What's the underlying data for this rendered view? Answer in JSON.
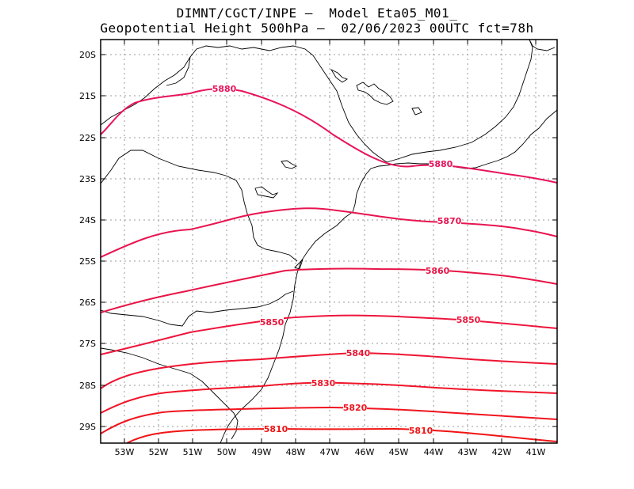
{
  "title_line1": "DIMNT/CGCT/INPE –  Model Eta05_M01_",
  "title_line2": "Geopotential Height 500hPa –  02/06/2023 00UTC fct=78h",
  "x_ticks": [
    "53W",
    "52W",
    "51W",
    "50W",
    "49W",
    "48W",
    "47W",
    "46W",
    "45W",
    "44W",
    "43W",
    "42W",
    "41W"
  ],
  "y_ticks": [
    "20S",
    "21S",
    "22S",
    "23S",
    "24S",
    "25S",
    "26S",
    "27S",
    "28S",
    "29S"
  ],
  "contour_colors": {
    "5880": "#e8145a",
    "5870": "#e81450",
    "5860": "#e81446",
    "5850": "#ee143c",
    "5840": "#ee1432",
    "5830": "#f01428",
    "5820": "#f0141e",
    "5810": "#f01414"
  },
  "contour_labels": {
    "c5880a": "5880",
    "c5880b": "5880",
    "c5870": "5870",
    "c5860": "5860",
    "c5850a": "5850",
    "c5850b": "5850",
    "c5840": "5840",
    "c5830": "5830",
    "c5820": "5820",
    "c5810a": "5810",
    "c5810b": "5810"
  }
}
